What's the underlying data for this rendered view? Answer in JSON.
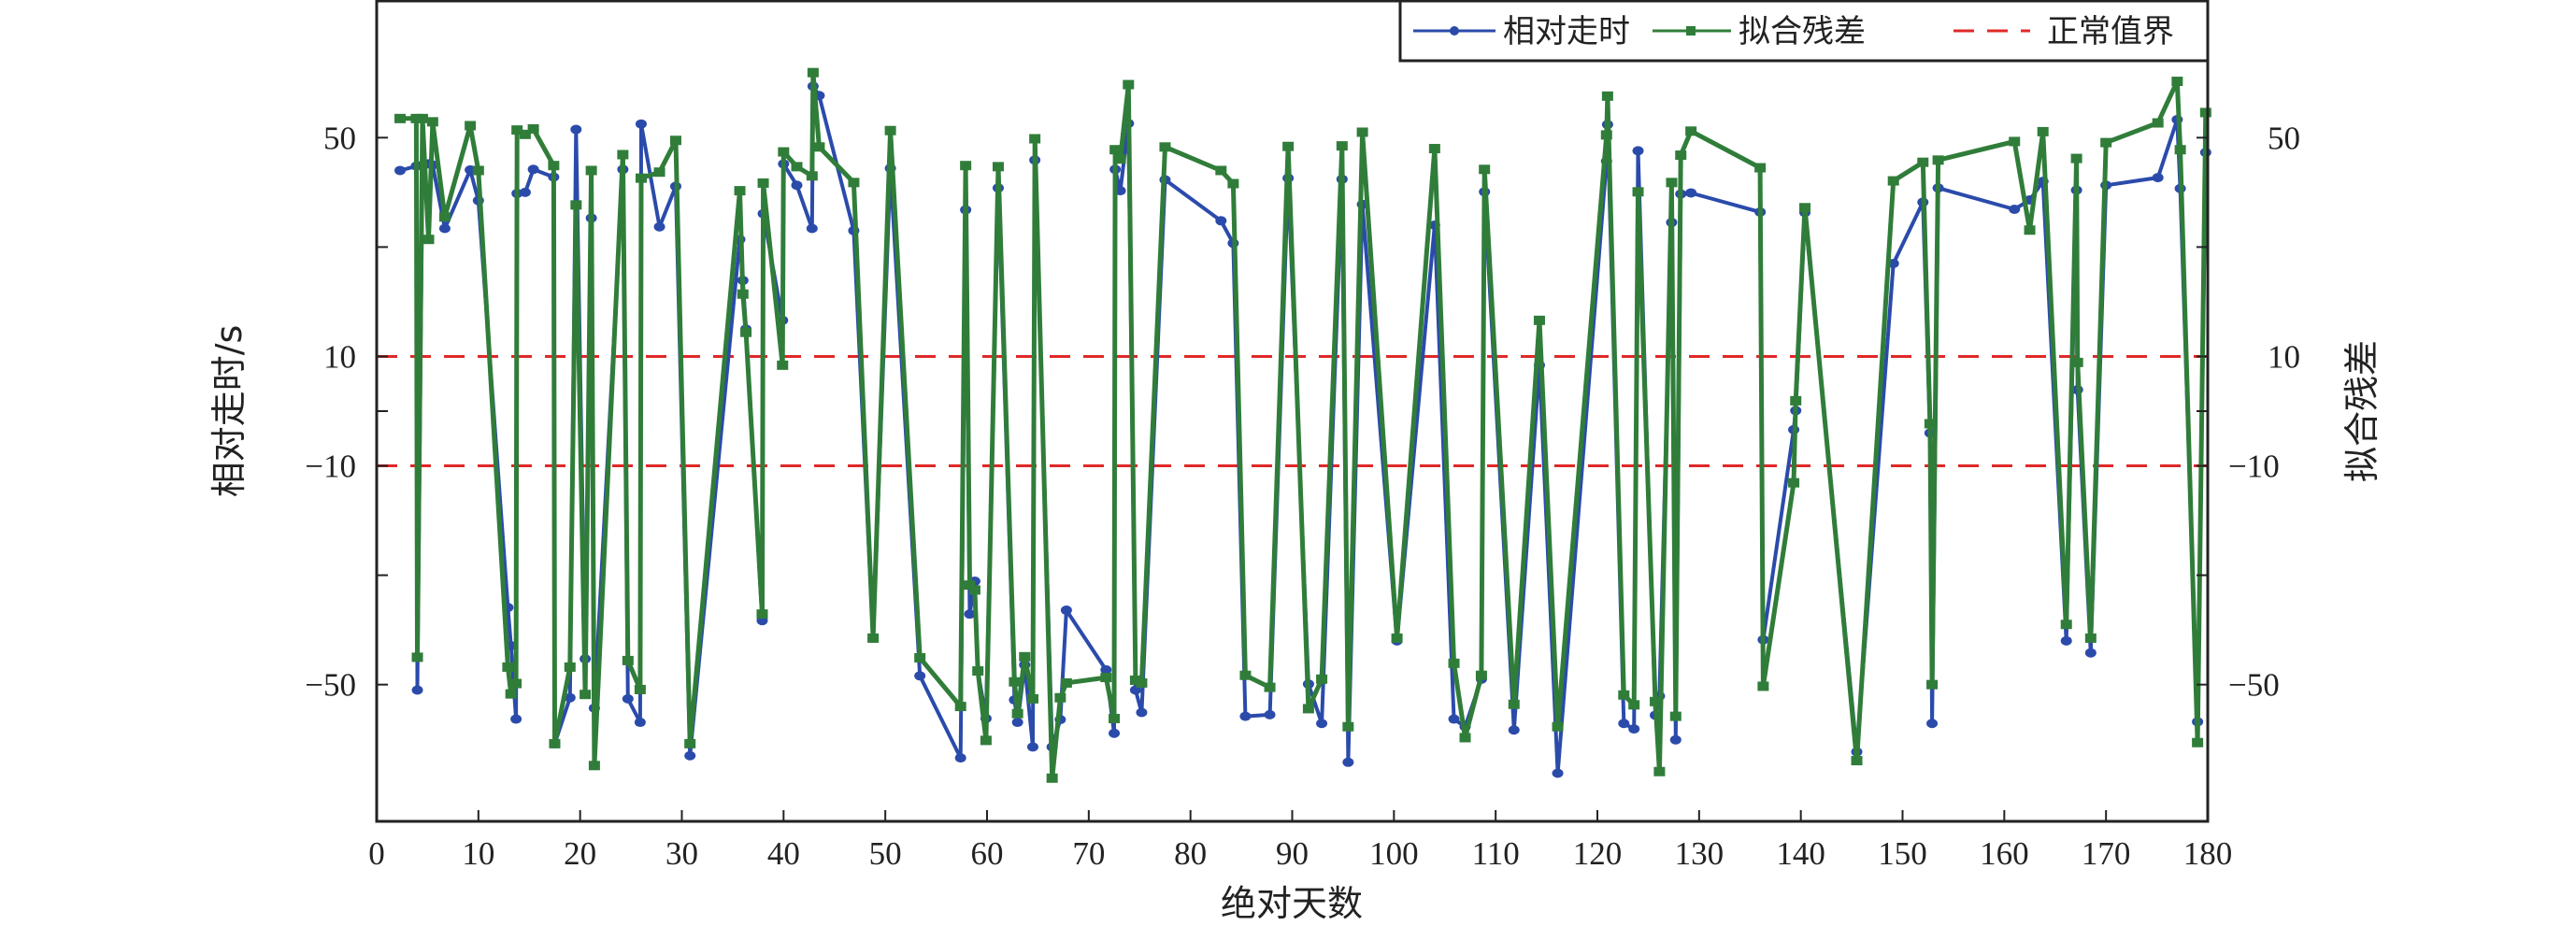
{
  "chart_data": {
    "type": "line",
    "title": "",
    "xlabel": "绝对天数",
    "ylabel": "相对走时/s",
    "ylabel_right": "拟合残差",
    "xlim": [
      0,
      180
    ],
    "ylim": [
      -75,
      75
    ],
    "grid": false,
    "legend_position": "top-right",
    "x_ticks": [
      0,
      10,
      20,
      30,
      40,
      50,
      60,
      70,
      80,
      90,
      100,
      110,
      120,
      130,
      140,
      150,
      160,
      170,
      180
    ],
    "x_tick_labels": [
      "0",
      "10",
      "20",
      "30",
      "40",
      "50",
      "60",
      "70",
      "80",
      "90",
      "100",
      "110",
      "120",
      "130",
      "140",
      "150",
      "160",
      "170",
      "180"
    ],
    "y_ticks": [
      50,
      30,
      10,
      0,
      -10,
      -30,
      -50
    ],
    "y_tick_labels_values": [
      50,
      10,
      -10,
      -50
    ],
    "y_tick_labels": [
      "50",
      "10",
      "−10",
      "−50"
    ],
    "thresholds": {
      "name": "正常值界",
      "values": [
        10,
        -10
      ],
      "color": "#e02828"
    },
    "x": [
      2.3,
      3.9,
      4.0,
      4.5,
      5.1,
      5.5,
      6.7,
      9.2,
      10.0,
      12.9,
      13.2,
      13.7,
      13.8,
      14.6,
      15.4,
      17.4,
      17.5,
      19.0,
      19.6,
      20.5,
      21.1,
      21.4,
      24.2,
      24.7,
      25.9,
      26.0,
      27.8,
      29.4,
      30.8,
      35.7,
      36.0,
      36.3,
      37.9,
      38.0,
      39.9,
      40.0,
      41.3,
      42.8,
      42.9,
      43.5,
      46.9,
      48.8,
      50.5,
      53.4,
      57.4,
      57.9,
      58.3,
      58.8,
      59.1,
      59.9,
      61.1,
      62.7,
      63.0,
      63.7,
      64.5,
      64.7,
      66.4,
      67.2,
      67.8,
      71.7,
      72.5,
      72.6,
      73.1,
      73.9,
      74.6,
      75.2,
      77.5,
      83.0,
      84.2,
      85.4,
      87.8,
      89.6,
      91.6,
      92.9,
      94.9,
      95.5,
      96.9,
      100.3,
      104.0,
      105.9,
      107.0,
      108.6,
      108.9,
      111.8,
      114.3,
      116.1,
      120.9,
      121.0,
      122.6,
      123.6,
      124.0,
      125.7,
      126.1,
      127.3,
      127.7,
      128.2,
      129.2,
      136.0,
      136.3,
      139.3,
      139.5,
      140.4,
      145.5,
      149.1,
      152.0,
      152.7,
      152.9,
      153.5,
      161.0,
      162.5,
      163.8,
      166.1,
      167.1,
      167.2,
      168.5,
      170.0,
      175.1,
      177.0,
      177.3,
      179.0,
      179.8
    ],
    "series": [
      {
        "name": "相对走时",
        "color": "#2b4bab",
        "marker": "circle",
        "values": [
          44.0,
          44.8,
          -51.0,
          45.0,
          45.2,
          45.0,
          33.4,
          44.1,
          38.5,
          -35.9,
          -42.9,
          -56.3,
          39.8,
          40.0,
          44.2,
          42.8,
          -60.8,
          -52.4,
          51.5,
          -45.3,
          35.3,
          -54.3,
          44.2,
          -52.6,
          -56.9,
          52.5,
          33.7,
          41.1,
          -63.0,
          31.4,
          23.9,
          15.0,
          -38.3,
          36.1,
          16.6,
          45.2,
          41.3,
          33.4,
          59.4,
          57.7,
          33.0,
          -41.5,
          44.4,
          -48.4,
          -63.4,
          36.8,
          -37.1,
          -31.1,
          -47.5,
          -56.2,
          40.8,
          -52.8,
          -56.9,
          -46.4,
          -61.4,
          45.9,
          -61.4,
          -56.4,
          -36.4,
          -47.3,
          -58.9,
          44.2,
          40.3,
          52.6,
          -51.0,
          -55.1,
          42.3,
          34.8,
          30.7,
          -55.8,
          -55.5,
          42.6,
          -49.9,
          -57.1,
          42.4,
          -64.2,
          37.8,
          -42.0,
          34.0,
          -56.3,
          -57.7,
          -49.0,
          40.1,
          -58.3,
          8.4,
          -66.2,
          45.7,
          52.4,
          -57.1,
          -58.1,
          47.6,
          -55.6,
          -52.1,
          34.5,
          -60.1,
          39.7,
          39.9,
          36.4,
          -41.8,
          -3.4,
          0.1,
          36.3,
          -62.3,
          27.0,
          38.2,
          -4.0,
          -57.1,
          40.8,
          36.9,
          38.6,
          42.0,
          -42.0,
          40.4,
          3.9,
          -44.2,
          41.3,
          42.7,
          53.3,
          40.7,
          -56.8,
          47.3
        ]
      },
      {
        "name": "拟合残差",
        "color": "#307d3a",
        "marker": "square",
        "values": [
          53.5,
          53.5,
          -45.0,
          53.5,
          31.4,
          52.9,
          35.5,
          52.2,
          44.0,
          -46.8,
          -51.7,
          -49.8,
          51.4,
          50.6,
          51.6,
          44.9,
          -60.8,
          -46.8,
          37.7,
          -51.8,
          44.0,
          -64.8,
          46.9,
          -45.6,
          -50.9,
          42.6,
          43.7,
          49.5,
          -60.8,
          40.3,
          21.4,
          14.4,
          -37.1,
          41.7,
          8.4,
          47.4,
          44.7,
          43.0,
          61.9,
          48.3,
          41.8,
          -41.5,
          51.3,
          -45.1,
          -54.0,
          44.9,
          -31.8,
          -32.7,
          -47.5,
          -60.2,
          44.7,
          -49.5,
          -55.3,
          -44.9,
          -52.6,
          49.8,
          -67.1,
          -52.4,
          -49.7,
          -48.7,
          -56.2,
          47.8,
          46.1,
          59.7,
          -49.2,
          -49.7,
          48.3,
          44.0,
          41.6,
          -48.3,
          -50.5,
          48.4,
          -54.4,
          -49.0,
          48.5,
          -57.7,
          51.0,
          -41.5,
          48.0,
          -46.1,
          -59.7,
          -48.3,
          44.2,
          -53.6,
          16.6,
          -57.7,
          50.5,
          57.6,
          -51.9,
          -53.7,
          40.1,
          -53.1,
          -65.9,
          41.8,
          -55.8,
          46.8,
          51.2,
          44.5,
          -50.3,
          -13.1,
          1.9,
          37.2,
          -63.9,
          42.1,
          45.5,
          -2.3,
          -50.0,
          45.9,
          49.3,
          33.1,
          51.1,
          -39.0,
          46.2,
          8.9,
          -41.5,
          49.1,
          52.7,
          60.3,
          47.8,
          -60.6,
          54.6
        ]
      }
    ]
  },
  "legend": {
    "items": [
      {
        "label": "相对走时"
      },
      {
        "label": "拟合残差"
      },
      {
        "label": "正常值界"
      }
    ]
  }
}
